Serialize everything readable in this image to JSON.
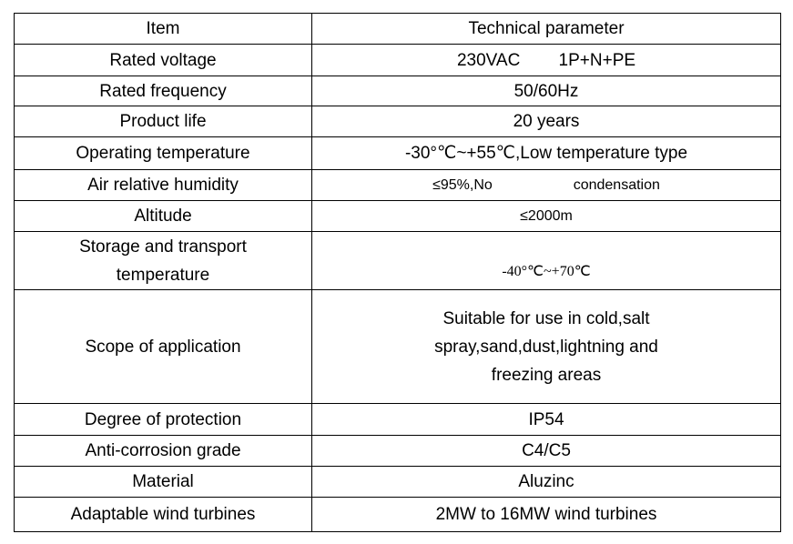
{
  "table": {
    "header": [
      "Item",
      "Technical parameter"
    ],
    "rows": [
      [
        "Rated voltage",
        "230VAC        1P+N+PE"
      ],
      [
        "Rated frequency",
        "50/60Hz"
      ],
      [
        "Product life",
        "20 years"
      ],
      [
        "Operating temperature",
        "-30°℃~+55℃,Low temperature type"
      ],
      [
        "Air relative humidity",
        "≤95%,No                    condensation"
      ],
      [
        "Altitude",
        "≤2000m"
      ],
      [
        "Storage and transport temperature",
        "-40°℃~+70℃"
      ],
      [
        "Scope of application",
        "Suitable for use in cold,salt spray,sand,dust,lightning and freezing areas"
      ],
      [
        "Degree of protection",
        "IP54"
      ],
      [
        "Anti-corrosion grade",
        "C4/C5"
      ],
      [
        "Material",
        "Aluzinc"
      ],
      [
        "Adaptable wind turbines",
        "2MW to 16MW wind turbines"
      ]
    ]
  }
}
